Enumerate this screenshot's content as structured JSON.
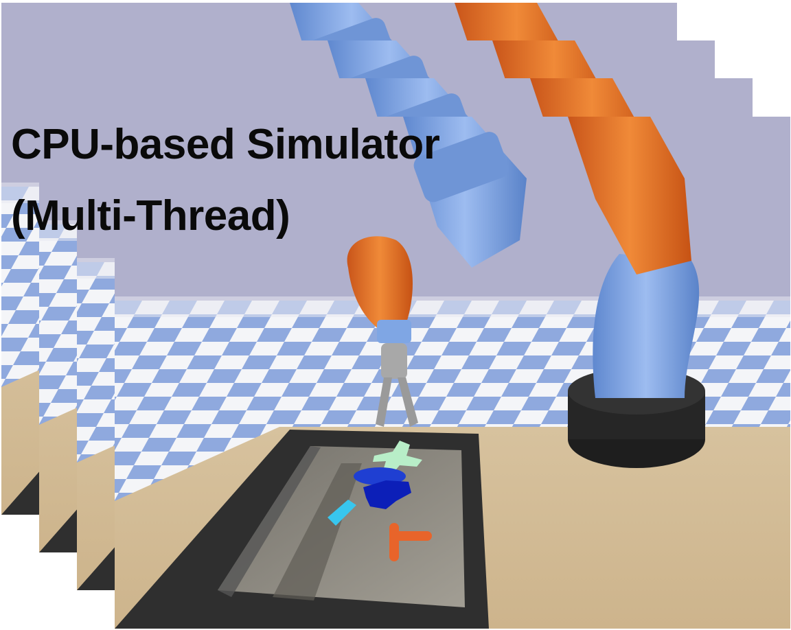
{
  "caption": {
    "line1": "CPU-based Simulator",
    "line2": "(Multi-Thread)"
  },
  "colors": {
    "sky": "#b0b0cc",
    "checker_blue": "#8fa9de",
    "checker_white": "#f4f5f8",
    "table": "#d9c4a2",
    "tray": "#3b3b3b",
    "tray_floor": "#8f8c84",
    "arm_blue": "#7fa6e4",
    "arm_orange": "#e36f22",
    "base_black": "#1e1e1e",
    "gripper_gray": "#a8a8a8",
    "object_mint": "#b8eec8",
    "object_blue": "#1f3fd2",
    "object_navy": "#0c1fb8",
    "object_cyan": "#38c6ee",
    "object_orange": "#e8642a"
  },
  "frames": [
    "simulation-frame",
    "simulation-frame",
    "simulation-frame",
    "simulation-frame"
  ]
}
